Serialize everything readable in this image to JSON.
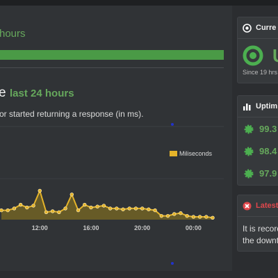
{
  "header": {
    "period": "hours"
  },
  "response": {
    "title_tail": "e",
    "period": "last 24 hours",
    "description": "or started returning a response (in ms)."
  },
  "chart_data": {
    "type": "area",
    "series": [
      {
        "name": "Miliseconds",
        "color": "#e5b42a",
        "values": [
          10,
          10,
          12,
          16,
          13,
          15,
          31,
          8,
          9,
          8,
          12,
          27,
          10,
          16,
          13,
          14,
          15,
          12,
          12,
          11,
          12,
          12,
          12,
          11,
          10,
          4,
          4,
          6,
          7,
          4,
          3,
          3,
          3,
          2
        ]
      }
    ],
    "categories": [
      null,
      null,
      null,
      null,
      null,
      null,
      "12:00",
      null,
      null,
      null,
      null,
      null,
      null,
      null,
      "16:00",
      null,
      null,
      null,
      null,
      null,
      null,
      null,
      "20:00",
      null,
      null,
      null,
      null,
      null,
      null,
      null,
      "00:00",
      null,
      null,
      null
    ],
    "ylim": [
      0,
      100
    ]
  },
  "status": {
    "title": "Curre",
    "state": "U",
    "since": "Since 19 hrs"
  },
  "uptime": {
    "title": "Uptim",
    "rows": [
      "99.3",
      "98.4",
      "97.9"
    ]
  },
  "latest": {
    "title": "Latest",
    "lines": [
      "It is record",
      "the downti"
    ]
  }
}
